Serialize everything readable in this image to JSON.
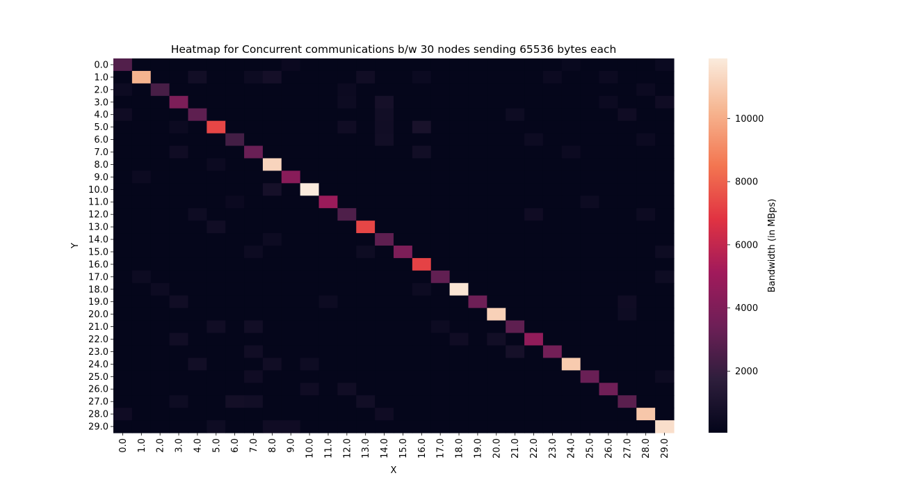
{
  "chart_data": {
    "type": "heatmap",
    "title": "Heatmap for Concurrent communications b/w 30 nodes sending 65536 bytes each",
    "xlabel": "X",
    "ylabel": "Y",
    "x_categories": [
      "0.0",
      "1.0",
      "2.0",
      "3.0",
      "4.0",
      "5.0",
      "6.0",
      "7.0",
      "8.0",
      "9.0",
      "10.0",
      "11.0",
      "12.0",
      "13.0",
      "14.0",
      "15.0",
      "16.0",
      "17.0",
      "18.0",
      "19.0",
      "20.0",
      "21.0",
      "22.0",
      "23.0",
      "24.0",
      "25.0",
      "26.0",
      "27.0",
      "28.0",
      "29.0"
    ],
    "y_categories": [
      "0.0",
      "1.0",
      "2.0",
      "3.0",
      "4.0",
      "5.0",
      "6.0",
      "7.0",
      "8.0",
      "9.0",
      "10.0",
      "11.0",
      "12.0",
      "13.0",
      "14.0",
      "15.0",
      "16.0",
      "17.0",
      "18.0",
      "19.0",
      "20.0",
      "21.0",
      "22.0",
      "23.0",
      "24.0",
      "25.0",
      "26.0",
      "27.0",
      "28.0",
      "29.0"
    ],
    "diagonal_values": [
      2700,
      10200,
      2400,
      3900,
      3000,
      7300,
      2300,
      3300,
      11200,
      4300,
      11900,
      4900,
      2600,
      7300,
      3000,
      3900,
      7200,
      3100,
      11700,
      3400,
      11100,
      3000,
      4600,
      3600,
      10900,
      3300,
      3500,
      2900,
      10800,
      11500
    ],
    "off_diagonal_values": {
      "baseline": 120,
      "cells": [
        {
          "x": 4,
          "y": 1,
          "value": 650
        },
        {
          "x": 8,
          "y": 1,
          "value": 750
        },
        {
          "x": 13,
          "y": 1,
          "value": 600
        },
        {
          "x": 7,
          "y": 1,
          "value": 450
        },
        {
          "x": 16,
          "y": 1,
          "value": 380
        },
        {
          "x": 23,
          "y": 1,
          "value": 420
        },
        {
          "x": 26,
          "y": 1,
          "value": 400
        },
        {
          "x": 9,
          "y": 0,
          "value": 350
        },
        {
          "x": 24,
          "y": 0,
          "value": 300
        },
        {
          "x": 29,
          "y": 0,
          "value": 380
        },
        {
          "x": 0,
          "y": 2,
          "value": 450
        },
        {
          "x": 12,
          "y": 2,
          "value": 400
        },
        {
          "x": 28,
          "y": 2,
          "value": 400
        },
        {
          "x": 14,
          "y": 3,
          "value": 800
        },
        {
          "x": 12,
          "y": 3,
          "value": 450
        },
        {
          "x": 26,
          "y": 3,
          "value": 420
        },
        {
          "x": 29,
          "y": 3,
          "value": 550
        },
        {
          "x": 0,
          "y": 4,
          "value": 550
        },
        {
          "x": 14,
          "y": 4,
          "value": 650
        },
        {
          "x": 21,
          "y": 4,
          "value": 500
        },
        {
          "x": 27,
          "y": 4,
          "value": 550
        },
        {
          "x": 14,
          "y": 5,
          "value": 600
        },
        {
          "x": 16,
          "y": 5,
          "value": 900
        },
        {
          "x": 12,
          "y": 5,
          "value": 550
        },
        {
          "x": 3,
          "y": 5,
          "value": 400
        },
        {
          "x": 14,
          "y": 6,
          "value": 650
        },
        {
          "x": 22,
          "y": 6,
          "value": 450
        },
        {
          "x": 28,
          "y": 6,
          "value": 420
        },
        {
          "x": 3,
          "y": 7,
          "value": 550
        },
        {
          "x": 16,
          "y": 7,
          "value": 650
        },
        {
          "x": 24,
          "y": 7,
          "value": 420
        },
        {
          "x": 5,
          "y": 8,
          "value": 400
        },
        {
          "x": 1,
          "y": 9,
          "value": 400
        },
        {
          "x": 8,
          "y": 10,
          "value": 800
        },
        {
          "x": 25,
          "y": 11,
          "value": 450
        },
        {
          "x": 6,
          "y": 11,
          "value": 350
        },
        {
          "x": 4,
          "y": 12,
          "value": 500
        },
        {
          "x": 22,
          "y": 12,
          "value": 550
        },
        {
          "x": 28,
          "y": 12,
          "value": 450
        },
        {
          "x": 5,
          "y": 13,
          "value": 600
        },
        {
          "x": 8,
          "y": 14,
          "value": 450
        },
        {
          "x": 7,
          "y": 15,
          "value": 450
        },
        {
          "x": 13,
          "y": 15,
          "value": 500
        },
        {
          "x": 29,
          "y": 15,
          "value": 500
        },
        {
          "x": 1,
          "y": 17,
          "value": 450
        },
        {
          "x": 29,
          "y": 17,
          "value": 500
        },
        {
          "x": 2,
          "y": 18,
          "value": 450
        },
        {
          "x": 16,
          "y": 18,
          "value": 450
        },
        {
          "x": 3,
          "y": 19,
          "value": 600
        },
        {
          "x": 11,
          "y": 19,
          "value": 450
        },
        {
          "x": 27,
          "y": 19,
          "value": 550
        },
        {
          "x": 27,
          "y": 20,
          "value": 500
        },
        {
          "x": 5,
          "y": 21,
          "value": 600
        },
        {
          "x": 7,
          "y": 21,
          "value": 650
        },
        {
          "x": 17,
          "y": 21,
          "value": 450
        },
        {
          "x": 3,
          "y": 22,
          "value": 600
        },
        {
          "x": 18,
          "y": 22,
          "value": 550
        },
        {
          "x": 20,
          "y": 22,
          "value": 650
        },
        {
          "x": 7,
          "y": 23,
          "value": 600
        },
        {
          "x": 21,
          "y": 23,
          "value": 800
        },
        {
          "x": 4,
          "y": 24,
          "value": 650
        },
        {
          "x": 8,
          "y": 24,
          "value": 600
        },
        {
          "x": 10,
          "y": 24,
          "value": 500
        },
        {
          "x": 7,
          "y": 25,
          "value": 550
        },
        {
          "x": 29,
          "y": 25,
          "value": 450
        },
        {
          "x": 10,
          "y": 26,
          "value": 550
        },
        {
          "x": 12,
          "y": 26,
          "value": 600
        },
        {
          "x": 6,
          "y": 27,
          "value": 700
        },
        {
          "x": 7,
          "y": 27,
          "value": 650
        },
        {
          "x": 13,
          "y": 27,
          "value": 650
        },
        {
          "x": 3,
          "y": 27,
          "value": 500
        },
        {
          "x": 0,
          "y": 28,
          "value": 550
        },
        {
          "x": 14,
          "y": 28,
          "value": 550
        },
        {
          "x": 8,
          "y": 29,
          "value": 550
        },
        {
          "x": 9,
          "y": 29,
          "value": 550
        },
        {
          "x": 5,
          "y": 29,
          "value": 500
        }
      ]
    },
    "colorbar": {
      "label": "Bandwidth (in MBps)",
      "min": 50,
      "max": 11900,
      "ticks": [
        2000,
        4000,
        6000,
        8000,
        10000
      ],
      "colormap": "rocket",
      "colors": [
        "#03051a",
        "#2e1e3c",
        "#6e1f57",
        "#a11a5b",
        "#e13342",
        "#f37651",
        "#f6b48f",
        "#faebdd"
      ]
    },
    "grid": false,
    "legend": "colorbar-right"
  }
}
